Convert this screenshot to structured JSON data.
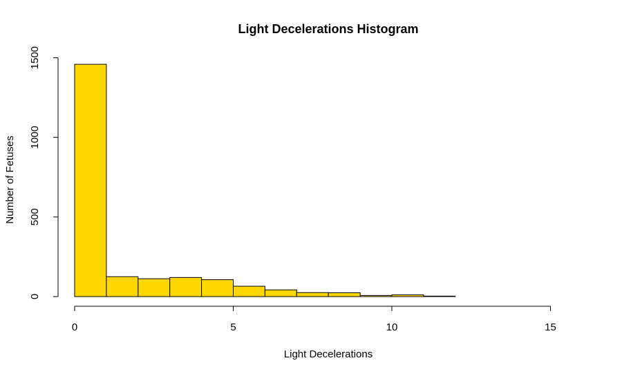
{
  "chart_data": {
    "type": "bar",
    "title": "Light Decelerations Histogram",
    "xlabel": "Light Decelerations",
    "ylabel": "Number of Fetuses",
    "bar_color": "#FFD700",
    "bins": [
      {
        "start": 0,
        "end": 1,
        "count": 1459
      },
      {
        "start": 1,
        "end": 2,
        "count": 125
      },
      {
        "start": 2,
        "end": 3,
        "count": 112
      },
      {
        "start": 3,
        "end": 4,
        "count": 120
      },
      {
        "start": 4,
        "end": 5,
        "count": 106
      },
      {
        "start": 5,
        "end": 6,
        "count": 65
      },
      {
        "start": 6,
        "end": 7,
        "count": 42
      },
      {
        "start": 7,
        "end": 8,
        "count": 25
      },
      {
        "start": 8,
        "end": 9,
        "count": 24
      },
      {
        "start": 9,
        "end": 10,
        "count": 7
      },
      {
        "start": 10,
        "end": 11,
        "count": 11
      },
      {
        "start": 11,
        "end": 12,
        "count": 3
      },
      {
        "start": 12,
        "end": 13,
        "count": 0
      },
      {
        "start": 13,
        "end": 14,
        "count": 0
      },
      {
        "start": 14,
        "end": 15,
        "count": 0
      },
      {
        "start": 15,
        "end": 16,
        "count": 0
      }
    ],
    "xlim": [
      0,
      16
    ],
    "ylim": [
      0,
      1500
    ],
    "x_ticks": [
      0,
      5,
      10,
      15
    ],
    "y_ticks": [
      0,
      500,
      1000,
      1500
    ],
    "grid": false
  }
}
